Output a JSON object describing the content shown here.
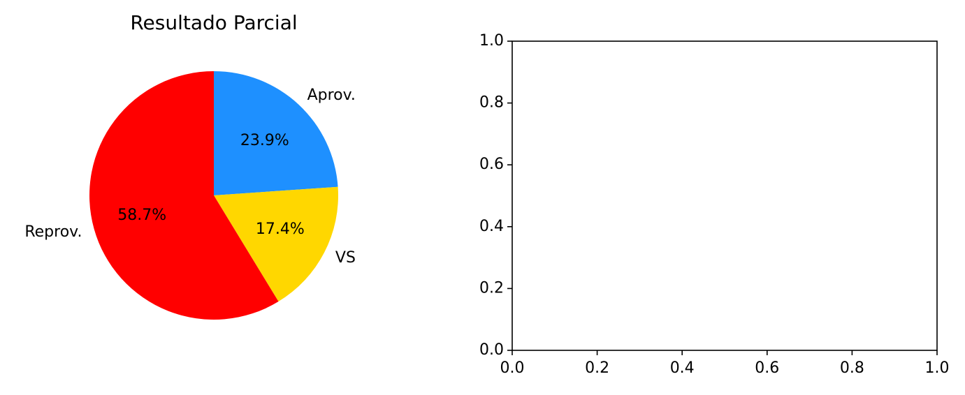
{
  "chart_data": [
    {
      "type": "pie",
      "title": "Resultado Parcial",
      "slices": [
        {
          "label": "Aprov.",
          "value": 23.9,
          "pct_label": "23.9%",
          "color": "#1E90FF"
        },
        {
          "label": "VS",
          "value": 17.4,
          "pct_label": "17.4%",
          "color": "#FFD700"
        },
        {
          "label": "Reprov.",
          "value": 58.7,
          "pct_label": "58.7%",
          "color": "#FF0000"
        }
      ],
      "start_angle_deg": 90,
      "direction": "clockwise"
    },
    {
      "type": "line",
      "title": "",
      "xlabel": "",
      "ylabel": "",
      "xlim": [
        0.0,
        1.0
      ],
      "ylim": [
        0.0,
        1.0
      ],
      "xticks": [
        "0.0",
        "0.2",
        "0.4",
        "0.6",
        "0.8",
        "1.0"
      ],
      "yticks": [
        "0.0",
        "0.2",
        "0.4",
        "0.6",
        "0.8",
        "1.0"
      ],
      "series": [],
      "grid": false
    }
  ]
}
